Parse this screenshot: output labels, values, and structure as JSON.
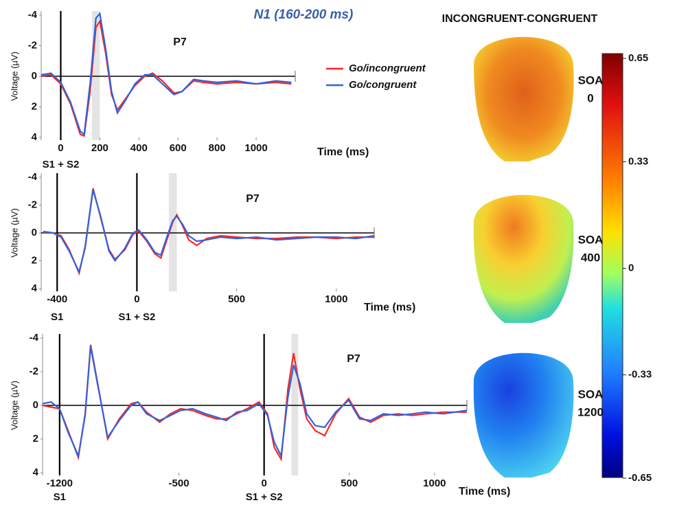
{
  "title": "N1 (160-200 ms)",
  "chart_data": [
    {
      "type": "line",
      "channel": "P7",
      "x_label": "Time (ms)",
      "y_label": "Voltage (µV)",
      "xlim": [
        -100,
        1200
      ],
      "xticks": [
        0,
        200,
        400,
        600,
        800,
        1000
      ],
      "ylim": [
        4,
        -4
      ],
      "yticks": [
        -4,
        -2,
        0,
        2,
        4
      ],
      "shade": [
        160,
        200
      ],
      "events": [
        {
          "x": 0,
          "label": "S1 + S2"
        }
      ],
      "x": [
        -100,
        -50,
        0,
        50,
        100,
        120,
        150,
        180,
        200,
        230,
        260,
        290,
        330,
        380,
        430,
        470,
        520,
        580,
        620,
        680,
        730,
        800,
        900,
        1000,
        1100,
        1180
      ],
      "series": [
        {
          "name": "Go/incongruent",
          "color": "#ff2424",
          "values": [
            0,
            -0.1,
            0.5,
            1.8,
            3.8,
            3.9,
            1,
            -3.2,
            -3.6,
            -1.5,
            1.2,
            2.2,
            1.5,
            0.6,
            0,
            -0.2,
            0.3,
            1.1,
            1.0,
            0.3,
            0.4,
            0.5,
            0.4,
            0.5,
            0.4,
            0.5
          ]
        },
        {
          "name": "Go/congruent",
          "color": "#2f62e0",
          "values": [
            -0.1,
            -0.2,
            0.4,
            1.7,
            3.6,
            3.8,
            0.5,
            -3.8,
            -4.1,
            -1.8,
            1.0,
            2.4,
            1.6,
            0.5,
            -0.1,
            -0.1,
            0.5,
            1.2,
            1.0,
            0.2,
            0.3,
            0.4,
            0.3,
            0.5,
            0.3,
            0.4
          ]
        }
      ]
    },
    {
      "type": "line",
      "channel": "P7",
      "x_label": "Time (ms)",
      "y_label": "Voltage (µV)",
      "xlim": [
        -480,
        1190
      ],
      "xticks": [
        -400,
        0,
        500,
        1000
      ],
      "ylim": [
        4,
        -4
      ],
      "yticks": [
        -4,
        -2,
        0,
        2,
        4
      ],
      "shade": [
        160,
        200
      ],
      "events": [
        {
          "x": -400,
          "label": "S1"
        },
        {
          "x": 0,
          "label": "S1 + S2"
        }
      ],
      "x": [
        -470,
        -420,
        -380,
        -340,
        -290,
        -260,
        -220,
        -180,
        -140,
        -110,
        -60,
        -20,
        10,
        50,
        90,
        120,
        150,
        180,
        200,
        230,
        260,
        300,
        350,
        420,
        500,
        600,
        700,
        800,
        900,
        1000,
        1100,
        1190
      ],
      "series": [
        {
          "name": "Go/incongruent",
          "color": "#ff2424",
          "values": [
            0,
            0,
            0.2,
            1.2,
            2.9,
            1.0,
            -3.2,
            -1.0,
            1.2,
            1.9,
            1.2,
            0.1,
            -0.1,
            0.6,
            1.5,
            1.8,
            0.5,
            -0.8,
            -1.3,
            -0.5,
            0.5,
            0.9,
            0.4,
            0.2,
            0.3,
            0.4,
            0.4,
            0.3,
            0.3,
            0.4,
            0.3,
            0.3
          ]
        },
        {
          "name": "Go/congruent",
          "color": "#2f62e0",
          "values": [
            -0.1,
            0,
            0.3,
            1.3,
            2.8,
            1.1,
            -3.1,
            -1.1,
            1.3,
            2.0,
            1.1,
            0,
            -0.2,
            0.5,
            1.4,
            1.6,
            0.3,
            -0.9,
            -1.2,
            -0.6,
            0.2,
            0.6,
            0.5,
            0.3,
            0.4,
            0.3,
            0.5,
            0.4,
            0.3,
            0.3,
            0.4,
            0.2
          ]
        }
      ]
    },
    {
      "type": "line",
      "channel": "P7",
      "x_label": "Time (ms)",
      "y_label": "Voltage (µV)",
      "xlim": [
        -1300,
        1190
      ],
      "xticks": [
        -1200,
        -500,
        0,
        500,
        1000
      ],
      "ylim": [
        4,
        -4
      ],
      "yticks": [
        -4,
        -2,
        0,
        2,
        4
      ],
      "shade": [
        160,
        200
      ],
      "events": [
        {
          "x": -1200,
          "label": "S1"
        },
        {
          "x": 0,
          "label": "S1 + S2"
        }
      ],
      "x": [
        -1300,
        -1250,
        -1200,
        -1150,
        -1090,
        -1050,
        -1018,
        -980,
        -918,
        -850,
        -780,
        -740,
        -690,
        -613,
        -550,
        -490,
        -420,
        -343,
        -280,
        -222,
        -160,
        -100,
        -30,
        20,
        60,
        100,
        140,
        173,
        210,
        250,
        300,
        355,
        420,
        496,
        560,
        625,
        700,
        786,
        870,
        947,
        1050,
        1190
      ],
      "series": [
        {
          "name": "Go/incongruent",
          "color": "#ff2424",
          "values": [
            0,
            0.1,
            0.2,
            1.5,
            3.1,
            0.5,
            -3.6,
            -1.5,
            2.0,
            0.8,
            -0.1,
            -0.2,
            0.4,
            1.0,
            0.5,
            0.2,
            0.3,
            0.6,
            0.8,
            0.8,
            0.5,
            0.2,
            -0.2,
            0.5,
            2.5,
            3.2,
            -1,
            -3.1,
            -1.0,
            0.8,
            1.5,
            1.8,
            0.5,
            -0.4,
            0.7,
            1.0,
            0.6,
            0.5,
            0.6,
            0.5,
            0.4,
            0.4
          ]
        },
        {
          "name": "Go/congruent",
          "color": "#2f62e0",
          "values": [
            -0.1,
            -0.2,
            0.2,
            1.6,
            3.0,
            0.6,
            -3.5,
            -1.4,
            1.9,
            0.9,
            0,
            -0.2,
            0.5,
            0.9,
            0.6,
            0.3,
            0.2,
            0.5,
            0.7,
            0.9,
            0.4,
            0.3,
            -0.1,
            0.6,
            2.2,
            3.0,
            -0.5,
            -2.4,
            -1.3,
            0.5,
            1.2,
            1.3,
            0.4,
            -0.3,
            0.8,
            0.9,
            0.5,
            0.6,
            0.5,
            0.4,
            0.5,
            0.3
          ]
        }
      ]
    }
  ],
  "topography": {
    "title": "INCONGRUENT-CONGRUENT",
    "maps": [
      {
        "label": "SOA",
        "soa": 0
      },
      {
        "label": "SOA",
        "soa": 400
      },
      {
        "label": "SOA",
        "soa": 1200
      }
    ],
    "colorbar": {
      "lim": [
        -0.65,
        0.65
      ],
      "ticks": [
        0.65,
        0.33,
        0,
        -0.33,
        -0.65
      ]
    }
  }
}
